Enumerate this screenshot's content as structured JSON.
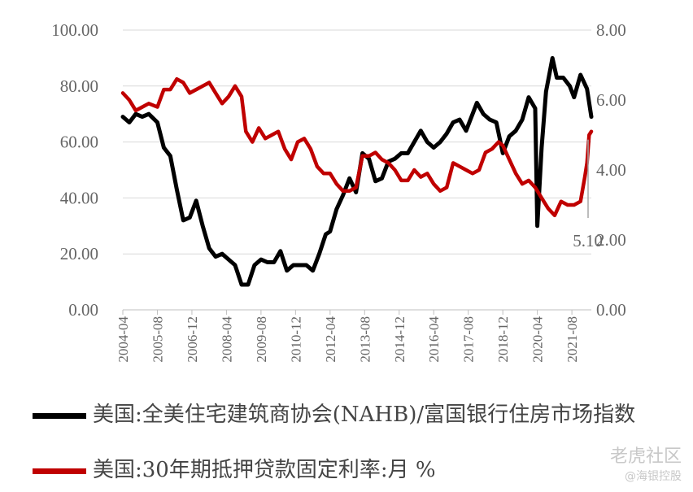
{
  "chart_data": {
    "type": "line",
    "left_axis": {
      "ticks": [
        "0.00",
        "20.00",
        "40.00",
        "60.00",
        "80.00",
        "100.00"
      ],
      "ylim": [
        0,
        100
      ]
    },
    "right_axis": {
      "ticks": [
        "0.00",
        "2.00",
        "4.00",
        "6.00",
        "8.00"
      ],
      "ylim": [
        0,
        8
      ]
    },
    "x_ticks": [
      "2004-04",
      "2005-08",
      "2006-12",
      "2008-04",
      "2009-08",
      "2010-12",
      "2012-04",
      "2013-08",
      "2014-12",
      "2016-04",
      "2017-08",
      "2018-12",
      "2020-04",
      "2021-08"
    ],
    "x_range": [
      "2004-04",
      "2022-05"
    ],
    "grid": "horizontal",
    "annotation": "5.10",
    "series": [
      {
        "name": "美国:全美住宅建筑商协会(NAHB)/富国银行住房市场指数",
        "axis": "left",
        "color": "#000000",
        "points": [
          [
            "2004-04",
            69
          ],
          [
            "2004-07",
            67
          ],
          [
            "2004-10",
            70
          ],
          [
            "2005-01",
            69
          ],
          [
            "2005-04",
            70
          ],
          [
            "2005-08",
            67
          ],
          [
            "2005-11",
            58
          ],
          [
            "2006-02",
            55
          ],
          [
            "2006-05",
            43
          ],
          [
            "2006-08",
            32
          ],
          [
            "2006-11",
            33
          ],
          [
            "2007-02",
            39
          ],
          [
            "2007-05",
            30
          ],
          [
            "2007-08",
            22
          ],
          [
            "2007-11",
            19
          ],
          [
            "2008-02",
            20
          ],
          [
            "2008-05",
            18
          ],
          [
            "2008-08",
            16
          ],
          [
            "2008-11",
            9
          ],
          [
            "2009-02",
            9
          ],
          [
            "2009-05",
            16
          ],
          [
            "2009-08",
            18
          ],
          [
            "2009-11",
            17
          ],
          [
            "2010-02",
            17
          ],
          [
            "2010-05",
            21
          ],
          [
            "2010-08",
            14
          ],
          [
            "2010-11",
            16
          ],
          [
            "2011-02",
            16
          ],
          [
            "2011-05",
            16
          ],
          [
            "2011-08",
            14
          ],
          [
            "2011-11",
            20
          ],
          [
            "2012-02",
            27
          ],
          [
            "2012-04",
            28
          ],
          [
            "2012-07",
            36
          ],
          [
            "2012-10",
            41
          ],
          [
            "2013-01",
            47
          ],
          [
            "2013-04",
            42
          ],
          [
            "2013-07",
            56
          ],
          [
            "2013-10",
            54
          ],
          [
            "2014-01",
            46
          ],
          [
            "2014-04",
            47
          ],
          [
            "2014-07",
            53
          ],
          [
            "2014-10",
            54
          ],
          [
            "2015-01",
            56
          ],
          [
            "2015-04",
            56
          ],
          [
            "2015-07",
            60
          ],
          [
            "2015-10",
            64
          ],
          [
            "2016-01",
            60
          ],
          [
            "2016-04",
            58
          ],
          [
            "2016-07",
            60
          ],
          [
            "2016-10",
            63
          ],
          [
            "2017-01",
            67
          ],
          [
            "2017-04",
            68
          ],
          [
            "2017-07",
            64
          ],
          [
            "2017-10",
            70
          ],
          [
            "2017-12",
            74
          ],
          [
            "2018-03",
            70
          ],
          [
            "2018-06",
            68
          ],
          [
            "2018-09",
            67
          ],
          [
            "2018-12",
            56
          ],
          [
            "2019-03",
            62
          ],
          [
            "2019-06",
            64
          ],
          [
            "2019-09",
            68
          ],
          [
            "2019-12",
            76
          ],
          [
            "2020-03",
            72
          ],
          [
            "2020-04",
            30
          ],
          [
            "2020-06",
            58
          ],
          [
            "2020-08",
            78
          ],
          [
            "2020-11",
            90
          ],
          [
            "2021-01",
            83
          ],
          [
            "2021-04",
            83
          ],
          [
            "2021-07",
            80
          ],
          [
            "2021-09",
            76
          ],
          [
            "2021-12",
            84
          ],
          [
            "2022-03",
            79
          ],
          [
            "2022-05",
            69
          ]
        ]
      },
      {
        "name": "美国:30年期抵押贷款固定利率:月 %",
        "axis": "right",
        "color": "#c00000",
        "points": [
          [
            "2004-04",
            6.2
          ],
          [
            "2004-07",
            6.0
          ],
          [
            "2004-10",
            5.7
          ],
          [
            "2005-01",
            5.8
          ],
          [
            "2005-04",
            5.9
          ],
          [
            "2005-08",
            5.8
          ],
          [
            "2005-11",
            6.3
          ],
          [
            "2006-02",
            6.3
          ],
          [
            "2006-05",
            6.6
          ],
          [
            "2006-08",
            6.5
          ],
          [
            "2006-11",
            6.2
          ],
          [
            "2007-02",
            6.3
          ],
          [
            "2007-05",
            6.4
          ],
          [
            "2007-08",
            6.5
          ],
          [
            "2007-11",
            6.2
          ],
          [
            "2008-02",
            5.9
          ],
          [
            "2008-05",
            6.1
          ],
          [
            "2008-08",
            6.4
          ],
          [
            "2008-11",
            6.1
          ],
          [
            "2009-01",
            5.1
          ],
          [
            "2009-04",
            4.8
          ],
          [
            "2009-07",
            5.2
          ],
          [
            "2009-10",
            4.9
          ],
          [
            "2010-01",
            5.0
          ],
          [
            "2010-04",
            5.1
          ],
          [
            "2010-07",
            4.6
          ],
          [
            "2010-10",
            4.3
          ],
          [
            "2011-01",
            4.8
          ],
          [
            "2011-04",
            4.9
          ],
          [
            "2011-07",
            4.6
          ],
          [
            "2011-10",
            4.1
          ],
          [
            "2012-01",
            3.9
          ],
          [
            "2012-04",
            3.9
          ],
          [
            "2012-07",
            3.6
          ],
          [
            "2012-10",
            3.4
          ],
          [
            "2013-01",
            3.4
          ],
          [
            "2013-04",
            3.5
          ],
          [
            "2013-07",
            4.4
          ],
          [
            "2013-10",
            4.4
          ],
          [
            "2014-01",
            4.5
          ],
          [
            "2014-04",
            4.3
          ],
          [
            "2014-07",
            4.2
          ],
          [
            "2014-10",
            4.0
          ],
          [
            "2015-01",
            3.7
          ],
          [
            "2015-04",
            3.7
          ],
          [
            "2015-07",
            4.0
          ],
          [
            "2015-10",
            3.8
          ],
          [
            "2016-01",
            3.9
          ],
          [
            "2016-04",
            3.6
          ],
          [
            "2016-07",
            3.4
          ],
          [
            "2016-10",
            3.5
          ],
          [
            "2017-01",
            4.2
          ],
          [
            "2017-04",
            4.1
          ],
          [
            "2017-07",
            4.0
          ],
          [
            "2017-10",
            3.9
          ],
          [
            "2018-01",
            4.0
          ],
          [
            "2018-04",
            4.5
          ],
          [
            "2018-07",
            4.6
          ],
          [
            "2018-10",
            4.8
          ],
          [
            "2018-12",
            4.7
          ],
          [
            "2019-03",
            4.3
          ],
          [
            "2019-06",
            3.9
          ],
          [
            "2019-09",
            3.6
          ],
          [
            "2019-12",
            3.7
          ],
          [
            "2020-03",
            3.5
          ],
          [
            "2020-06",
            3.2
          ],
          [
            "2020-09",
            2.9
          ],
          [
            "2020-12",
            2.7
          ],
          [
            "2021-03",
            3.1
          ],
          [
            "2021-06",
            3.0
          ],
          [
            "2021-09",
            3.0
          ],
          [
            "2021-12",
            3.1
          ],
          [
            "2022-02",
            3.8
          ],
          [
            "2022-03",
            4.2
          ],
          [
            "2022-04",
            5.0
          ],
          [
            "2022-05",
            5.1
          ]
        ]
      }
    ]
  },
  "watermark": {
    "main": "老虎社区",
    "sub": "@海银控股"
  }
}
